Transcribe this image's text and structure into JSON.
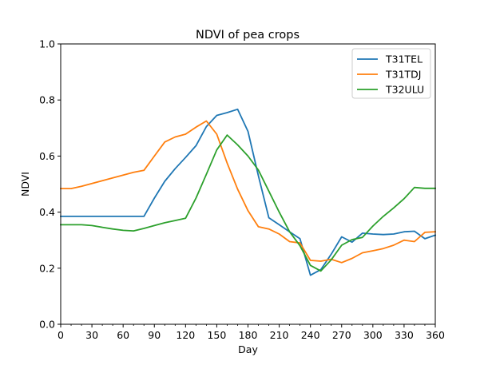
{
  "chart_data": {
    "type": "line",
    "title": "NDVI of pea crops",
    "xlabel": "Day",
    "ylabel": "NDVI",
    "xlim": [
      0,
      360
    ],
    "ylim": [
      0.0,
      1.0
    ],
    "xticks": [
      0,
      30,
      60,
      90,
      120,
      150,
      180,
      210,
      240,
      270,
      300,
      330,
      360
    ],
    "xtick_labels": [
      "0",
      "30",
      "60",
      "90",
      "120",
      "150",
      "180",
      "210",
      "240",
      "270",
      "300",
      "330",
      "360"
    ],
    "xticks_minor": [
      10,
      20,
      40,
      50,
      70,
      80,
      100,
      110,
      130,
      140,
      160,
      170,
      190,
      200,
      220,
      230,
      250,
      260,
      280,
      290,
      310,
      320,
      340,
      350
    ],
    "yticks": [
      0.0,
      0.2,
      0.4,
      0.6,
      0.8,
      1.0
    ],
    "ytick_labels": [
      "0.0",
      "0.2",
      "0.4",
      "0.6",
      "0.8",
      "1.0"
    ],
    "grid": false,
    "legend_position": "top-right",
    "series": [
      {
        "name": "T31TEL",
        "color": "#1f77b4",
        "x": [
          0,
          10,
          20,
          30,
          40,
          50,
          60,
          70,
          80,
          90,
          100,
          110,
          120,
          130,
          140,
          150,
          160,
          170,
          180,
          190,
          200,
          210,
          220,
          230,
          240,
          250,
          260,
          270,
          280,
          290,
          300,
          310,
          320,
          330,
          340,
          350,
          360
        ],
        "y": [
          0.385,
          0.385,
          0.385,
          0.385,
          0.385,
          0.385,
          0.385,
          0.385,
          0.385,
          0.45,
          0.51,
          0.555,
          0.595,
          0.637,
          0.705,
          0.745,
          0.755,
          0.767,
          0.688,
          0.53,
          0.38,
          0.355,
          0.33,
          0.305,
          0.175,
          0.195,
          0.25,
          0.312,
          0.293,
          0.325,
          0.322,
          0.32,
          0.322,
          0.33,
          0.332,
          0.305,
          0.318
        ]
      },
      {
        "name": "T31TDJ",
        "color": "#ff7f0e",
        "x": [
          0,
          10,
          20,
          30,
          40,
          50,
          60,
          70,
          80,
          90,
          100,
          110,
          120,
          130,
          140,
          150,
          160,
          170,
          180,
          190,
          200,
          210,
          220,
          230,
          240,
          250,
          260,
          270,
          280,
          290,
          300,
          310,
          320,
          330,
          340,
          350,
          360
        ],
        "y": [
          0.484,
          0.484,
          0.492,
          0.502,
          0.512,
          0.522,
          0.532,
          0.542,
          0.549,
          0.6,
          0.65,
          0.668,
          0.678,
          0.703,
          0.725,
          0.678,
          0.575,
          0.482,
          0.405,
          0.348,
          0.34,
          0.322,
          0.295,
          0.29,
          0.228,
          0.225,
          0.232,
          0.22,
          0.235,
          0.255,
          0.262,
          0.27,
          0.282,
          0.3,
          0.295,
          0.328,
          0.33
        ]
      },
      {
        "name": "T32ULU",
        "color": "#2ca02c",
        "x": [
          0,
          10,
          20,
          30,
          40,
          50,
          60,
          70,
          80,
          90,
          100,
          110,
          120,
          130,
          140,
          150,
          160,
          170,
          180,
          190,
          200,
          210,
          220,
          230,
          240,
          250,
          260,
          270,
          280,
          290,
          300,
          310,
          320,
          330,
          340,
          350,
          360
        ],
        "y": [
          0.355,
          0.355,
          0.355,
          0.352,
          0.346,
          0.34,
          0.335,
          0.333,
          0.342,
          0.352,
          0.362,
          0.37,
          0.378,
          0.45,
          0.535,
          0.622,
          0.675,
          0.64,
          0.6,
          0.55,
          0.475,
          0.4,
          0.33,
          0.28,
          0.21,
          0.19,
          0.23,
          0.282,
          0.302,
          0.31,
          0.35,
          0.385,
          0.415,
          0.448,
          0.488,
          0.485,
          0.485
        ]
      }
    ]
  }
}
